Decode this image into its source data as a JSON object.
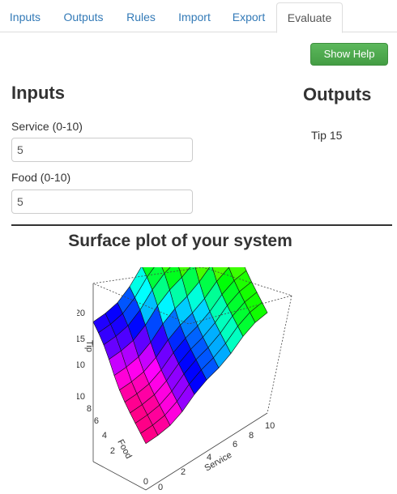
{
  "tabs": [
    {
      "label": "Inputs",
      "active": false
    },
    {
      "label": "Outputs",
      "active": false
    },
    {
      "label": "Rules",
      "active": false
    },
    {
      "label": "Import",
      "active": false
    },
    {
      "label": "Export",
      "active": false
    },
    {
      "label": "Evaluate",
      "active": true
    }
  ],
  "help_button": {
    "label": "Show Help",
    "color": "#5cb85c"
  },
  "inputs_section": {
    "heading": "Inputs",
    "fields": [
      {
        "label": "Service (0-10)",
        "value": "5"
      },
      {
        "label": "Food (0-10)",
        "value": "5"
      }
    ]
  },
  "outputs_section": {
    "heading": "Outputs",
    "result": "Tip 15"
  },
  "plot": {
    "title": "Surface plot of your system",
    "z_axis": {
      "label": "Tip",
      "ticks": [
        "20",
        "15",
        "10"
      ]
    },
    "y_axis": {
      "label": "Food",
      "ticks": [
        "10",
        "8",
        "6",
        "4",
        "2",
        "0"
      ]
    },
    "x_axis": {
      "label": "Service",
      "ticks": [
        "0",
        "2",
        "4",
        "6",
        "8",
        "10"
      ]
    }
  },
  "colors": {
    "link": "#337ab7",
    "accent": "#5cb85c"
  }
}
